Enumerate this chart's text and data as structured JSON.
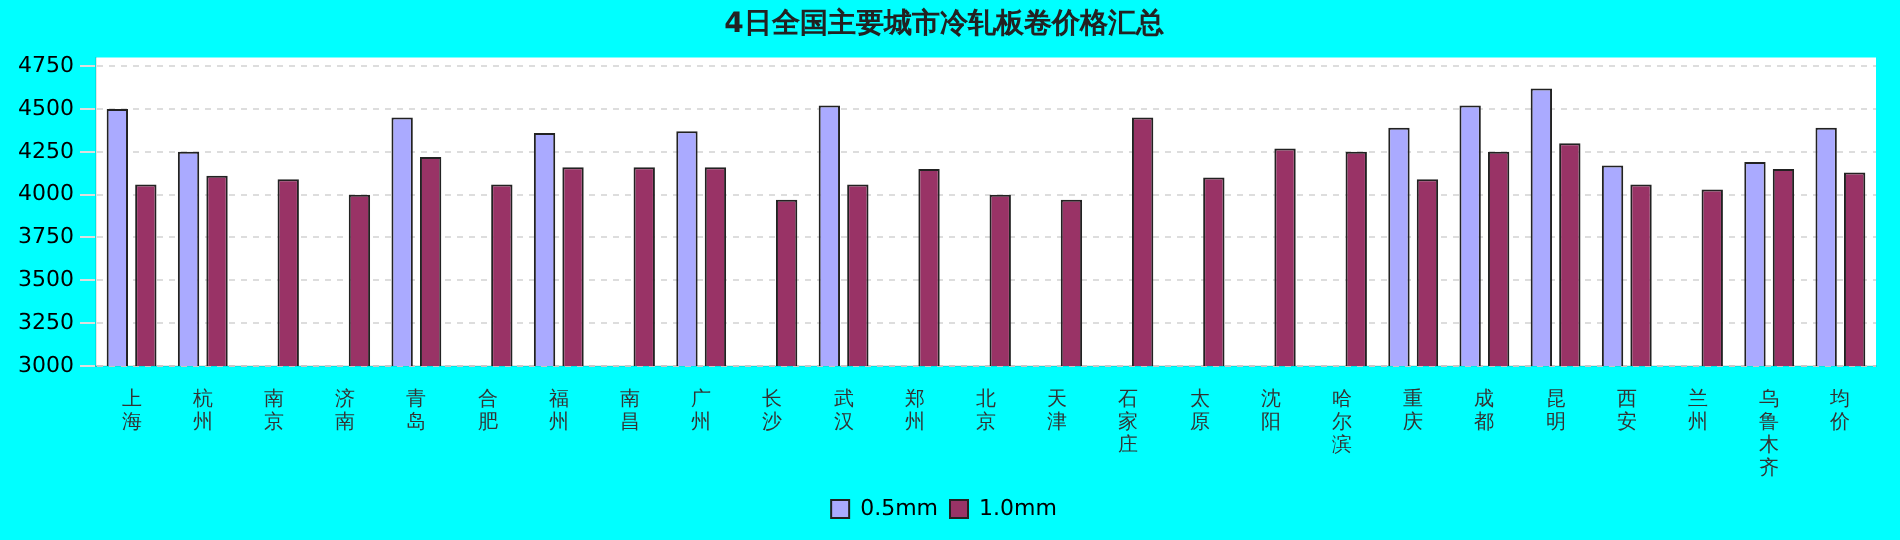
{
  "chart_data": {
    "type": "bar",
    "title": "4日全国主要城市冷轧板卷价格汇总",
    "categories": [
      "上海",
      "杭州",
      "南京",
      "济南",
      "青岛",
      "合肥",
      "福州",
      "南昌",
      "广州",
      "长沙",
      "武汉",
      "郑州",
      "北京",
      "天津",
      "石家庄",
      "太原",
      "沈阳",
      "哈尔滨",
      "重庆",
      "成都",
      "昆明",
      "西安",
      "兰州",
      "乌鲁木齐",
      "均价"
    ],
    "series": [
      {
        "name": "0.5mm",
        "color": "#aaaaff",
        "values": [
          4500,
          4250,
          null,
          null,
          4450,
          null,
          4360,
          null,
          4370,
          null,
          4520,
          null,
          null,
          null,
          null,
          null,
          null,
          null,
          4390,
          4520,
          4620,
          4170,
          null,
          4190,
          4390
        ]
      },
      {
        "name": "1.0mm",
        "color": "#993366",
        "values": [
          4060,
          4110,
          4090,
          4000,
          4220,
          4060,
          4160,
          4160,
          4160,
          3970,
          4060,
          4150,
          4000,
          3970,
          4450,
          4100,
          4270,
          4250,
          4090,
          4250,
          4300,
          4060,
          4030,
          4150,
          4130
        ]
      }
    ],
    "ylim": [
      3000,
      4800
    ],
    "yticks": [
      3000,
      3250,
      3500,
      3750,
      4000,
      4250,
      4500,
      4750
    ],
    "grid": "y",
    "legend": "bottom"
  }
}
